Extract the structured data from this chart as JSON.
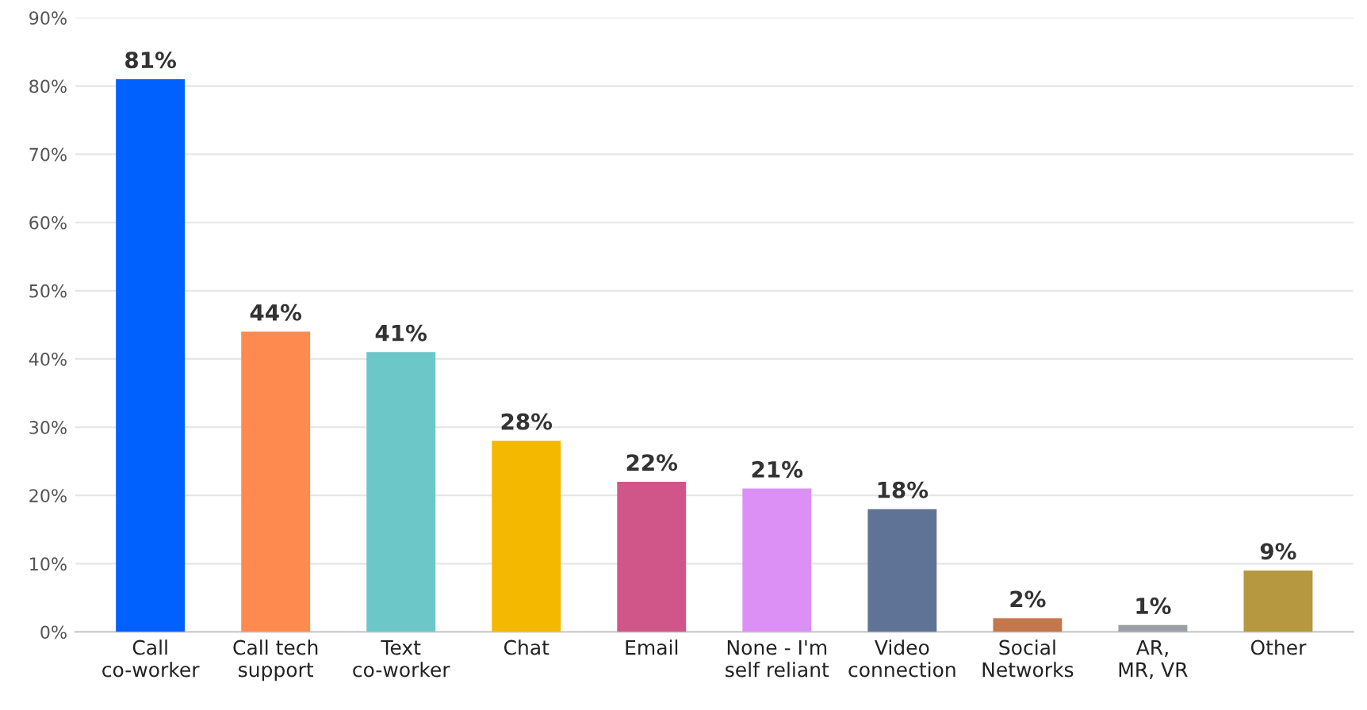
{
  "chart_data": {
    "type": "bar",
    "categories": [
      "Call co-worker",
      "Call tech support",
      "Text co-worker",
      "Chat",
      "Email",
      "None - I'm self reliant",
      "Video connection",
      "Social Networks",
      "AR, MR, VR",
      "Other"
    ],
    "values": [
      81,
      44,
      41,
      28,
      22,
      21,
      18,
      2,
      1,
      9
    ],
    "colors": [
      "#0061fe",
      "#ff8a50",
      "#6cc7c9",
      "#f5b800",
      "#d0568a",
      "#dc90f5",
      "#5e7396",
      "#c4774c",
      "#9aa0a6",
      "#b5983f"
    ],
    "value_labels": [
      "81%",
      "44%",
      "41%",
      "28%",
      "22%",
      "21%",
      "18%",
      "2%",
      "1%",
      "9%"
    ],
    "ylim": [
      0,
      90
    ],
    "yticks": [
      {
        "value": 0,
        "label": "0%"
      },
      {
        "value": 10,
        "label": "10%"
      },
      {
        "value": 20,
        "label": "20%"
      },
      {
        "value": 30,
        "label": "30%"
      },
      {
        "value": 40,
        "label": "40%"
      },
      {
        "value": 50,
        "label": "50%"
      },
      {
        "value": 60,
        "label": "60%"
      },
      {
        "value": 70,
        "label": "70%"
      },
      {
        "value": 80,
        "label": "80%"
      },
      {
        "value": 90,
        "label": "90%"
      }
    ],
    "grid": "y",
    "legend": false
  }
}
